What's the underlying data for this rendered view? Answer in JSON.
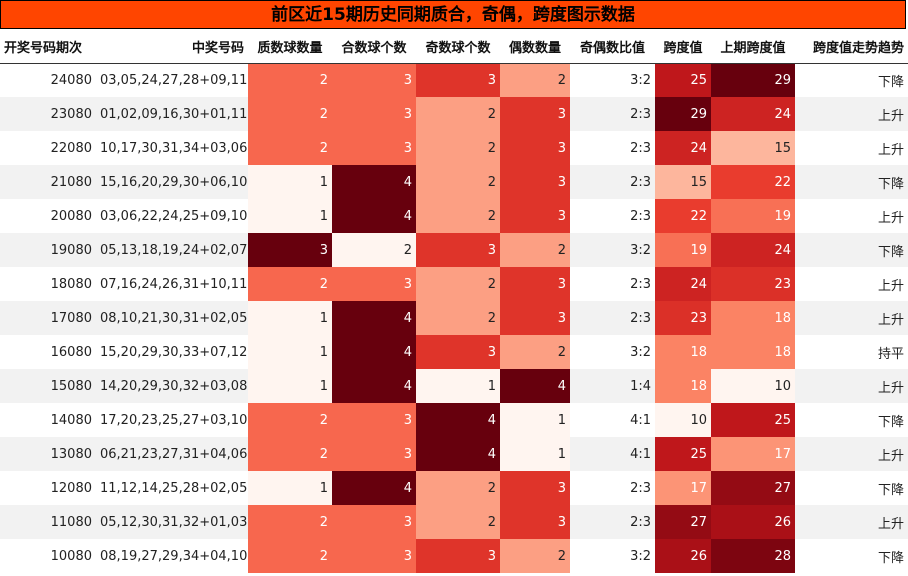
{
  "chart_data": {
    "type": "table",
    "title": "前区近15期历史同期质合，奇偶，跨度图示数据",
    "columns": [
      "开奖号码期次",
      "中奖号码",
      "质数球数量",
      "合数球个数",
      "奇数球个数",
      "偶数数量",
      "奇偶数比值",
      "跨度值",
      "上期跨度值",
      "跨度值走势趋势"
    ],
    "rows": [
      {
        "issue": "24080",
        "numbers": "03,05,24,27,28+09,11",
        "prime": 2,
        "composite": 3,
        "odd": 3,
        "even": 2,
        "ratio": "3:2",
        "span": 25,
        "prev_span": 29,
        "trend": "下降"
      },
      {
        "issue": "23080",
        "numbers": "01,02,09,16,30+01,11",
        "prime": 2,
        "composite": 3,
        "odd": 2,
        "even": 3,
        "ratio": "2:3",
        "span": 29,
        "prev_span": 24,
        "trend": "上升"
      },
      {
        "issue": "22080",
        "numbers": "10,17,30,31,34+03,06",
        "prime": 2,
        "composite": 3,
        "odd": 2,
        "even": 3,
        "ratio": "2:3",
        "span": 24,
        "prev_span": 15,
        "trend": "上升"
      },
      {
        "issue": "21080",
        "numbers": "15,16,20,29,30+06,10",
        "prime": 1,
        "composite": 4,
        "odd": 2,
        "even": 3,
        "ratio": "2:3",
        "span": 15,
        "prev_span": 22,
        "trend": "下降"
      },
      {
        "issue": "20080",
        "numbers": "03,06,22,24,25+09,10",
        "prime": 1,
        "composite": 4,
        "odd": 2,
        "even": 3,
        "ratio": "2:3",
        "span": 22,
        "prev_span": 19,
        "trend": "上升"
      },
      {
        "issue": "19080",
        "numbers": "05,13,18,19,24+02,07",
        "prime": 3,
        "composite": 2,
        "odd": 3,
        "even": 2,
        "ratio": "3:2",
        "span": 19,
        "prev_span": 24,
        "trend": "下降"
      },
      {
        "issue": "18080",
        "numbers": "07,16,24,26,31+10,11",
        "prime": 2,
        "composite": 3,
        "odd": 2,
        "even": 3,
        "ratio": "2:3",
        "span": 24,
        "prev_span": 23,
        "trend": "上升"
      },
      {
        "issue": "17080",
        "numbers": "08,10,21,30,31+02,05",
        "prime": 1,
        "composite": 4,
        "odd": 2,
        "even": 3,
        "ratio": "2:3",
        "span": 23,
        "prev_span": 18,
        "trend": "上升"
      },
      {
        "issue": "16080",
        "numbers": "15,20,29,30,33+07,12",
        "prime": 1,
        "composite": 4,
        "odd": 3,
        "even": 2,
        "ratio": "3:2",
        "span": 18,
        "prev_span": 18,
        "trend": "持平"
      },
      {
        "issue": "15080",
        "numbers": "14,20,29,30,32+03,08",
        "prime": 1,
        "composite": 4,
        "odd": 1,
        "even": 4,
        "ratio": "1:4",
        "span": 18,
        "prev_span": 10,
        "trend": "上升"
      },
      {
        "issue": "14080",
        "numbers": "17,20,23,25,27+03,10",
        "prime": 2,
        "composite": 3,
        "odd": 4,
        "even": 1,
        "ratio": "4:1",
        "span": 10,
        "prev_span": 25,
        "trend": "下降"
      },
      {
        "issue": "13080",
        "numbers": "06,21,23,27,31+04,06",
        "prime": 2,
        "composite": 3,
        "odd": 4,
        "even": 1,
        "ratio": "4:1",
        "span": 25,
        "prev_span": 17,
        "trend": "上升"
      },
      {
        "issue": "12080",
        "numbers": "11,12,14,25,28+02,05",
        "prime": 1,
        "composite": 4,
        "odd": 2,
        "even": 3,
        "ratio": "2:3",
        "span": 17,
        "prev_span": 27,
        "trend": "下降"
      },
      {
        "issue": "11080",
        "numbers": "05,12,30,31,32+01,03",
        "prime": 2,
        "composite": 3,
        "odd": 2,
        "even": 3,
        "ratio": "2:3",
        "span": 27,
        "prev_span": 26,
        "trend": "上升"
      },
      {
        "issue": "10080",
        "numbers": "08,19,27,29,34+04,10",
        "prime": 2,
        "composite": 3,
        "odd": 3,
        "even": 2,
        "ratio": "3:2",
        "span": 26,
        "prev_span": 28,
        "trend": "下降"
      }
    ],
    "heat_columns": [
      "prime",
      "composite",
      "odd",
      "even",
      "span",
      "prev_span"
    ],
    "colormap": [
      "#fff5f0",
      "#fdcab5",
      "#fc8a6a",
      "#f14432",
      "#bc141a",
      "#67000d"
    ]
  }
}
